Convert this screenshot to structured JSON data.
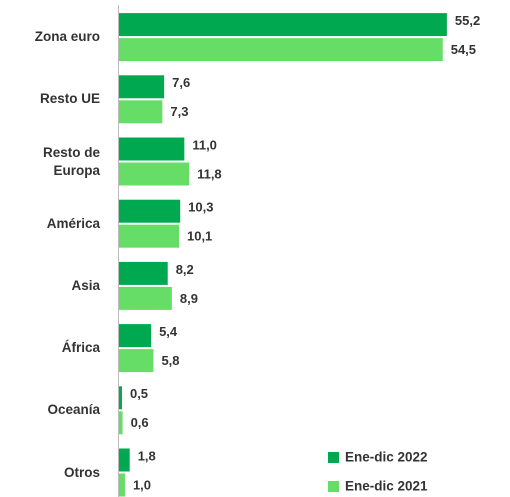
{
  "chart_data": {
    "type": "hbar",
    "categories": [
      "Zona euro",
      "Resto UE",
      "Resto de Europa",
      "América",
      "Asia",
      "África",
      "Oceanía",
      "Otros"
    ],
    "series": [
      {
        "name": "Ene-dic 2022",
        "color": "#00a94f",
        "values": [
          55.2,
          7.6,
          11.0,
          10.3,
          8.2,
          5.4,
          0.5,
          1.8
        ],
        "value_labels": [
          "55,2",
          "7,6",
          "11,0",
          "10,3",
          "8,2",
          "5,4",
          "0,5",
          "1,8"
        ]
      },
      {
        "name": "Ene-dic 2021",
        "color": "#66dd66",
        "values": [
          54.5,
          7.3,
          11.8,
          10.1,
          8.9,
          5.8,
          0.6,
          1.0
        ],
        "value_labels": [
          "54,5",
          "7,3",
          "11,8",
          "10,1",
          "8,9",
          "5,8",
          "0,6",
          "1,0"
        ]
      }
    ],
    "legend": "lower right"
  }
}
